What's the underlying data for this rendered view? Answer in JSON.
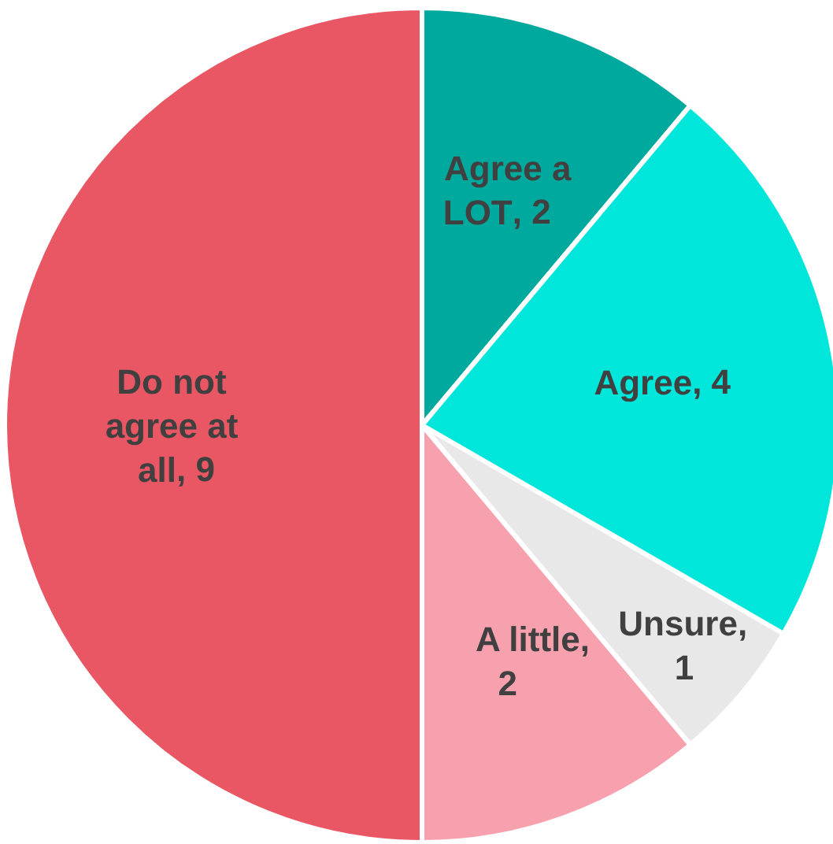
{
  "chart_data": {
    "type": "pie",
    "categories": [
      "Agree a LOT",
      "Agree",
      "Unsure",
      "A little",
      "Do not agree at all"
    ],
    "values": [
      2,
      4,
      1,
      2,
      9
    ],
    "colors": [
      "#00a99d",
      "#00e6da",
      "#e8e8e8",
      "#f8a1ae",
      "#e85763"
    ],
    "value_labels": [
      ", 2",
      ", 4",
      ", 1",
      ", 2",
      ", 9"
    ]
  }
}
